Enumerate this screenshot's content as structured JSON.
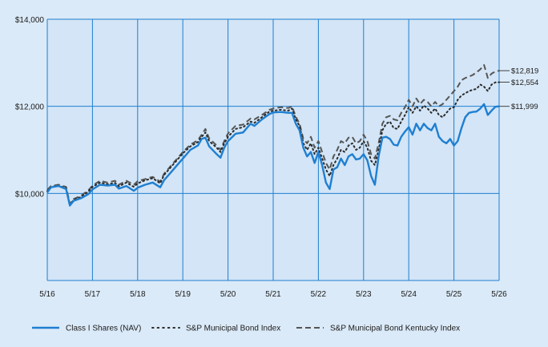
{
  "chart_data": {
    "type": "line",
    "title": "",
    "xlabel": "",
    "ylabel": "",
    "ylim": [
      8000,
      14000
    ],
    "y_ticks": [
      {
        "value": 10000,
        "label": "$10,000"
      },
      {
        "value": 12000,
        "label": "$12,000"
      },
      {
        "value": 14000,
        "label": "$14,000"
      }
    ],
    "x_range": [
      2016.417,
      2026.417
    ],
    "x_ticks": [
      {
        "value": 2016.417,
        "label": "5/16"
      },
      {
        "value": 2017.417,
        "label": "5/17"
      },
      {
        "value": 2018.417,
        "label": "5/18"
      },
      {
        "value": 2019.417,
        "label": "5/19"
      },
      {
        "value": 2020.417,
        "label": "5/20"
      },
      {
        "value": 2021.417,
        "label": "5/21"
      },
      {
        "value": 2022.417,
        "label": "5/22"
      },
      {
        "value": 2023.417,
        "label": "5/23"
      },
      {
        "value": 2024.417,
        "label": "5/24"
      },
      {
        "value": 2025.417,
        "label": "5/25"
      },
      {
        "value": 2026.417,
        "label": "5/26"
      }
    ],
    "grid": true,
    "legend_position": "bottom",
    "series": [
      {
        "name": "Class I Shares (NAV)",
        "style": "solid",
        "color": "#1f7fd1",
        "end_label": "$11,999",
        "x": [
          2016.417,
          2016.5,
          2016.667,
          2016.833,
          2016.917,
          2017.0,
          2017.167,
          2017.333,
          2017.417,
          2017.583,
          2017.75,
          2017.917,
          2018.0,
          2018.167,
          2018.333,
          2018.417,
          2018.583,
          2018.75,
          2018.917,
          2019.0,
          2019.167,
          2019.333,
          2019.417,
          2019.583,
          2019.75,
          2019.833,
          2019.917,
          2020.0,
          2020.167,
          2020.25,
          2020.333,
          2020.417,
          2020.583,
          2020.75,
          2020.917,
          2021.0,
          2021.167,
          2021.333,
          2021.417,
          2021.583,
          2021.75,
          2021.833,
          2021.917,
          2022.0,
          2022.083,
          2022.167,
          2022.25,
          2022.333,
          2022.417,
          2022.5,
          2022.583,
          2022.667,
          2022.75,
          2022.833,
          2022.917,
          2023.0,
          2023.083,
          2023.167,
          2023.25,
          2023.333,
          2023.417,
          2023.5,
          2023.583,
          2023.667,
          2023.75,
          2023.833,
          2023.917,
          2024.0,
          2024.083,
          2024.167,
          2024.25,
          2024.333,
          2024.417,
          2024.5,
          2024.583,
          2024.667,
          2024.75,
          2024.833,
          2024.917,
          2025.0,
          2025.083,
          2025.167,
          2025.25,
          2025.333,
          2025.417,
          2025.5,
          2025.583,
          2025.667,
          2025.75,
          2025.833,
          2025.917,
          2026.0,
          2026.083,
          2026.167,
          2026.25,
          2026.333,
          2026.417
        ],
        "y": [
          10020,
          10140,
          10170,
          10100,
          9720,
          9830,
          9890,
          9990,
          10090,
          10200,
          10180,
          10200,
          10110,
          10170,
          10060,
          10130,
          10200,
          10250,
          10140,
          10300,
          10500,
          10700,
          10800,
          11000,
          11100,
          11250,
          11280,
          11080,
          10900,
          10820,
          11050,
          11200,
          11370,
          11400,
          11600,
          11550,
          11700,
          11820,
          11860,
          11870,
          11850,
          11850,
          11600,
          11450,
          11050,
          10850,
          10950,
          10700,
          10950,
          10650,
          10250,
          10100,
          10550,
          10600,
          10800,
          10650,
          10850,
          10900,
          10780,
          10800,
          10900,
          10760,
          10400,
          10200,
          10850,
          11280,
          11300,
          11250,
          11120,
          11100,
          11300,
          11420,
          11520,
          11350,
          11600,
          11450,
          11600,
          11500,
          11450,
          11600,
          11300,
          11200,
          11150,
          11250,
          11100,
          11200,
          11500,
          11750,
          11850,
          11870,
          11880,
          11950,
          12050,
          11800,
          11900,
          11990,
          11999
        ]
      },
      {
        "name": "S&P Municipal Bond Index",
        "style": "dotted",
        "color": "#2a2a2a",
        "end_label": "$12,554",
        "x": [
          2016.417,
          2016.5,
          2016.667,
          2016.833,
          2016.917,
          2017.0,
          2017.167,
          2017.333,
          2017.417,
          2017.583,
          2017.75,
          2017.917,
          2018.0,
          2018.167,
          2018.333,
          2018.417,
          2018.583,
          2018.75,
          2018.917,
          2019.0,
          2019.167,
          2019.333,
          2019.417,
          2019.583,
          2019.75,
          2019.833,
          2019.917,
          2020.0,
          2020.167,
          2020.25,
          2020.333,
          2020.417,
          2020.583,
          2020.75,
          2020.917,
          2021.0,
          2021.167,
          2021.333,
          2021.417,
          2021.583,
          2021.75,
          2021.833,
          2021.917,
          2022.0,
          2022.083,
          2022.167,
          2022.25,
          2022.333,
          2022.417,
          2022.5,
          2022.583,
          2022.667,
          2022.75,
          2022.833,
          2022.917,
          2023.0,
          2023.083,
          2023.167,
          2023.25,
          2023.333,
          2023.417,
          2023.5,
          2023.583,
          2023.667,
          2023.75,
          2023.833,
          2023.917,
          2024.0,
          2024.083,
          2024.167,
          2024.25,
          2024.333,
          2024.417,
          2024.5,
          2024.583,
          2024.667,
          2024.75,
          2024.833,
          2024.917,
          2025.0,
          2025.083,
          2025.167,
          2025.25,
          2025.333,
          2025.417,
          2025.5,
          2025.583,
          2025.667,
          2025.75,
          2025.833,
          2025.917,
          2026.0,
          2026.083,
          2026.167,
          2026.25,
          2026.333,
          2026.417
        ],
        "y": [
          10050,
          10150,
          10180,
          10120,
          9740,
          9850,
          9920,
          10050,
          10150,
          10250,
          10210,
          10240,
          10160,
          10250,
          10150,
          10230,
          10300,
          10350,
          10230,
          10420,
          10620,
          10820,
          10920,
          11080,
          11180,
          11300,
          11400,
          11200,
          11050,
          10950,
          11150,
          11300,
          11480,
          11520,
          11650,
          11620,
          11750,
          11880,
          11900,
          11920,
          11900,
          11950,
          11700,
          11550,
          11150,
          11000,
          11150,
          10900,
          11050,
          10800,
          10550,
          10400,
          10650,
          10800,
          11000,
          10950,
          11100,
          11150,
          11000,
          11050,
          11200,
          11050,
          10750,
          10650,
          11000,
          11450,
          11600,
          11650,
          11500,
          11480,
          11650,
          11800,
          11980,
          11850,
          12000,
          11900,
          12020,
          11950,
          11850,
          11950,
          11800,
          11750,
          11850,
          11950,
          11980,
          12150,
          12250,
          12300,
          12350,
          12380,
          12400,
          12500,
          12450,
          12350,
          12500,
          12550,
          12554
        ]
      },
      {
        "name": "S&P Municipal Bond Kentucky Index",
        "style": "dashed",
        "color": "#555555",
        "end_label": "$12,819",
        "x": [
          2016.417,
          2016.5,
          2016.667,
          2016.833,
          2016.917,
          2017.0,
          2017.167,
          2017.333,
          2017.417,
          2017.583,
          2017.75,
          2017.917,
          2018.0,
          2018.167,
          2018.333,
          2018.417,
          2018.583,
          2018.75,
          2018.917,
          2019.0,
          2019.167,
          2019.333,
          2019.417,
          2019.583,
          2019.75,
          2019.833,
          2019.917,
          2020.0,
          2020.167,
          2020.25,
          2020.333,
          2020.417,
          2020.583,
          2020.75,
          2020.917,
          2021.0,
          2021.167,
          2021.333,
          2021.417,
          2021.583,
          2021.75,
          2021.833,
          2021.917,
          2022.0,
          2022.083,
          2022.167,
          2022.25,
          2022.333,
          2022.417,
          2022.5,
          2022.583,
          2022.667,
          2022.75,
          2022.833,
          2022.917,
          2023.0,
          2023.083,
          2023.167,
          2023.25,
          2023.333,
          2023.417,
          2023.5,
          2023.583,
          2023.667,
          2023.75,
          2023.833,
          2023.917,
          2024.0,
          2024.083,
          2024.167,
          2024.25,
          2024.333,
          2024.417,
          2024.5,
          2024.583,
          2024.667,
          2024.75,
          2024.833,
          2024.917,
          2025.0,
          2025.083,
          2025.167,
          2025.25,
          2025.333,
          2025.417,
          2025.5,
          2025.583,
          2025.667,
          2025.75,
          2025.833,
          2025.917,
          2026.0,
          2026.083,
          2026.167,
          2026.25,
          2026.333,
          2026.417
        ],
        "y": [
          10080,
          10170,
          10200,
          10150,
          9760,
          9870,
          9950,
          10080,
          10180,
          10290,
          10250,
          10290,
          10200,
          10290,
          10200,
          10280,
          10330,
          10380,
          10270,
          10450,
          10650,
          10850,
          10950,
          11120,
          11220,
          11350,
          11480,
          11260,
          11100,
          11000,
          11200,
          11380,
          11550,
          11580,
          11720,
          11700,
          11800,
          11920,
          11950,
          11980,
          11960,
          12000,
          11760,
          11600,
          11250,
          11150,
          11300,
          11050,
          11200,
          10950,
          10700,
          10550,
          10850,
          11000,
          11200,
          11150,
          11280,
          11300,
          11150,
          11200,
          11350,
          11200,
          10900,
          10800,
          11150,
          11600,
          11750,
          11780,
          11700,
          11680,
          11850,
          11980,
          12150,
          12000,
          12180,
          12050,
          12150,
          12100,
          12000,
          12100,
          12000,
          12050,
          12150,
          12250,
          12350,
          12450,
          12600,
          12650,
          12680,
          12720,
          12780,
          12850,
          12950,
          12650,
          12750,
          12800,
          12819
        ]
      }
    ]
  }
}
